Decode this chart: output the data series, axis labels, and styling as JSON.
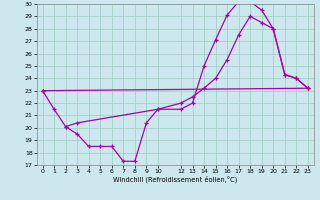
{
  "xlabel": "Windchill (Refroidissement éolien,°C)",
  "bg_color": "#cce8ee",
  "line_color": "#aa00aa",
  "grid_color": "#99ccbb",
  "xlim": [
    -0.5,
    23.5
  ],
  "ylim": [
    17,
    30
  ],
  "xticks": [
    0,
    1,
    2,
    3,
    4,
    5,
    6,
    7,
    8,
    9,
    10,
    12,
    13,
    14,
    15,
    16,
    17,
    18,
    19,
    20,
    21,
    22,
    23
  ],
  "yticks": [
    17,
    18,
    19,
    20,
    21,
    22,
    23,
    24,
    25,
    26,
    27,
    28,
    29,
    30
  ],
  "line1_x": [
    0,
    1,
    2,
    3,
    4,
    5,
    6,
    7,
    8,
    9,
    10,
    12,
    13,
    14,
    15,
    16,
    17,
    18,
    19,
    20,
    21,
    22,
    23
  ],
  "line1_y": [
    23,
    21.5,
    20.1,
    19.5,
    18.5,
    18.5,
    18.5,
    17.3,
    17.3,
    20.4,
    21.5,
    21.5,
    22.0,
    25.0,
    27.1,
    29.1,
    30.2,
    30.2,
    29.5,
    28.0,
    24.3,
    24.0,
    23.2
  ],
  "line2_x": [
    0,
    23
  ],
  "line2_y": [
    23,
    23.2
  ],
  "line3_x": [
    2,
    3,
    10,
    12,
    13,
    14,
    15,
    16,
    17,
    18,
    19,
    20,
    21,
    22,
    23
  ],
  "line3_y": [
    20.1,
    20.4,
    21.5,
    22.0,
    22.5,
    23.2,
    24.0,
    25.5,
    27.5,
    29.0,
    28.5,
    28.0,
    24.3,
    24.0,
    23.2
  ]
}
